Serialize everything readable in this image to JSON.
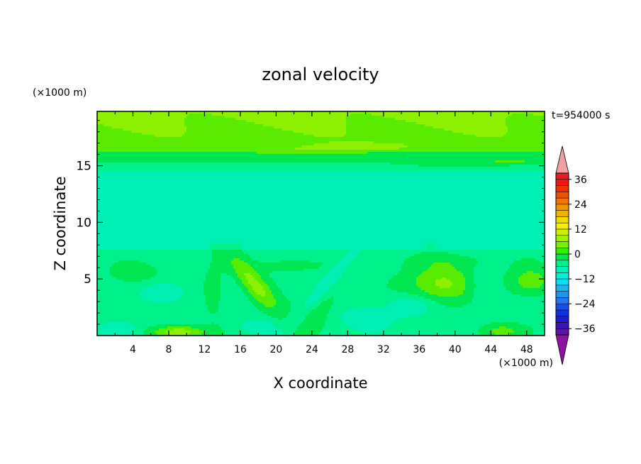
{
  "chart_data": {
    "type": "heatmap",
    "title": "zonal velocity",
    "xlabel": "X coordinate",
    "ylabel": "Z coordinate",
    "x_unit": "(×1000 m)",
    "y_unit": "(×1000 m)",
    "time_label": "t=954000 s",
    "xlim": [
      0,
      50
    ],
    "ylim": [
      0,
      19.8
    ],
    "x_ticks": [
      4,
      8,
      12,
      16,
      20,
      24,
      28,
      32,
      36,
      40,
      44,
      48
    ],
    "y_ticks": [
      5,
      10,
      15
    ],
    "colorbar": {
      "levels": [
        -42,
        -39,
        -36,
        -33,
        -30,
        -27,
        -24,
        -21,
        -18,
        -15,
        -12,
        -9,
        -6,
        -3,
        0,
        3,
        6,
        9,
        12,
        15,
        18,
        21,
        24,
        27,
        30,
        33,
        36,
        39,
        42
      ],
      "tick_labels": [
        "36",
        "24",
        "12",
        "0",
        "−12",
        "−24",
        "−36"
      ],
      "tick_values": [
        36,
        24,
        12,
        0,
        -12,
        -24,
        -36
      ],
      "under_color": "#8c14a0",
      "over_color": "#f0a0a0",
      "colors": [
        "#5a14a0",
        "#3c14b4",
        "#1e1ec8",
        "#1432dc",
        "#1450f0",
        "#1e78f0",
        "#1e96f0",
        "#1eb4f0",
        "#14dcf0",
        "#00f0dc",
        "#00f0b4",
        "#00f08c",
        "#00e650",
        "#32f000",
        "#78f000",
        "#a0f000",
        "#c8f000",
        "#f0f000",
        "#f0dc00",
        "#f0b400",
        "#f09600",
        "#f07800",
        "#f05000",
        "#f03200",
        "#f01414",
        "#e61e1e"
      ]
    },
    "field_description_levels": "u roughly -9..+12 m/s"
  }
}
